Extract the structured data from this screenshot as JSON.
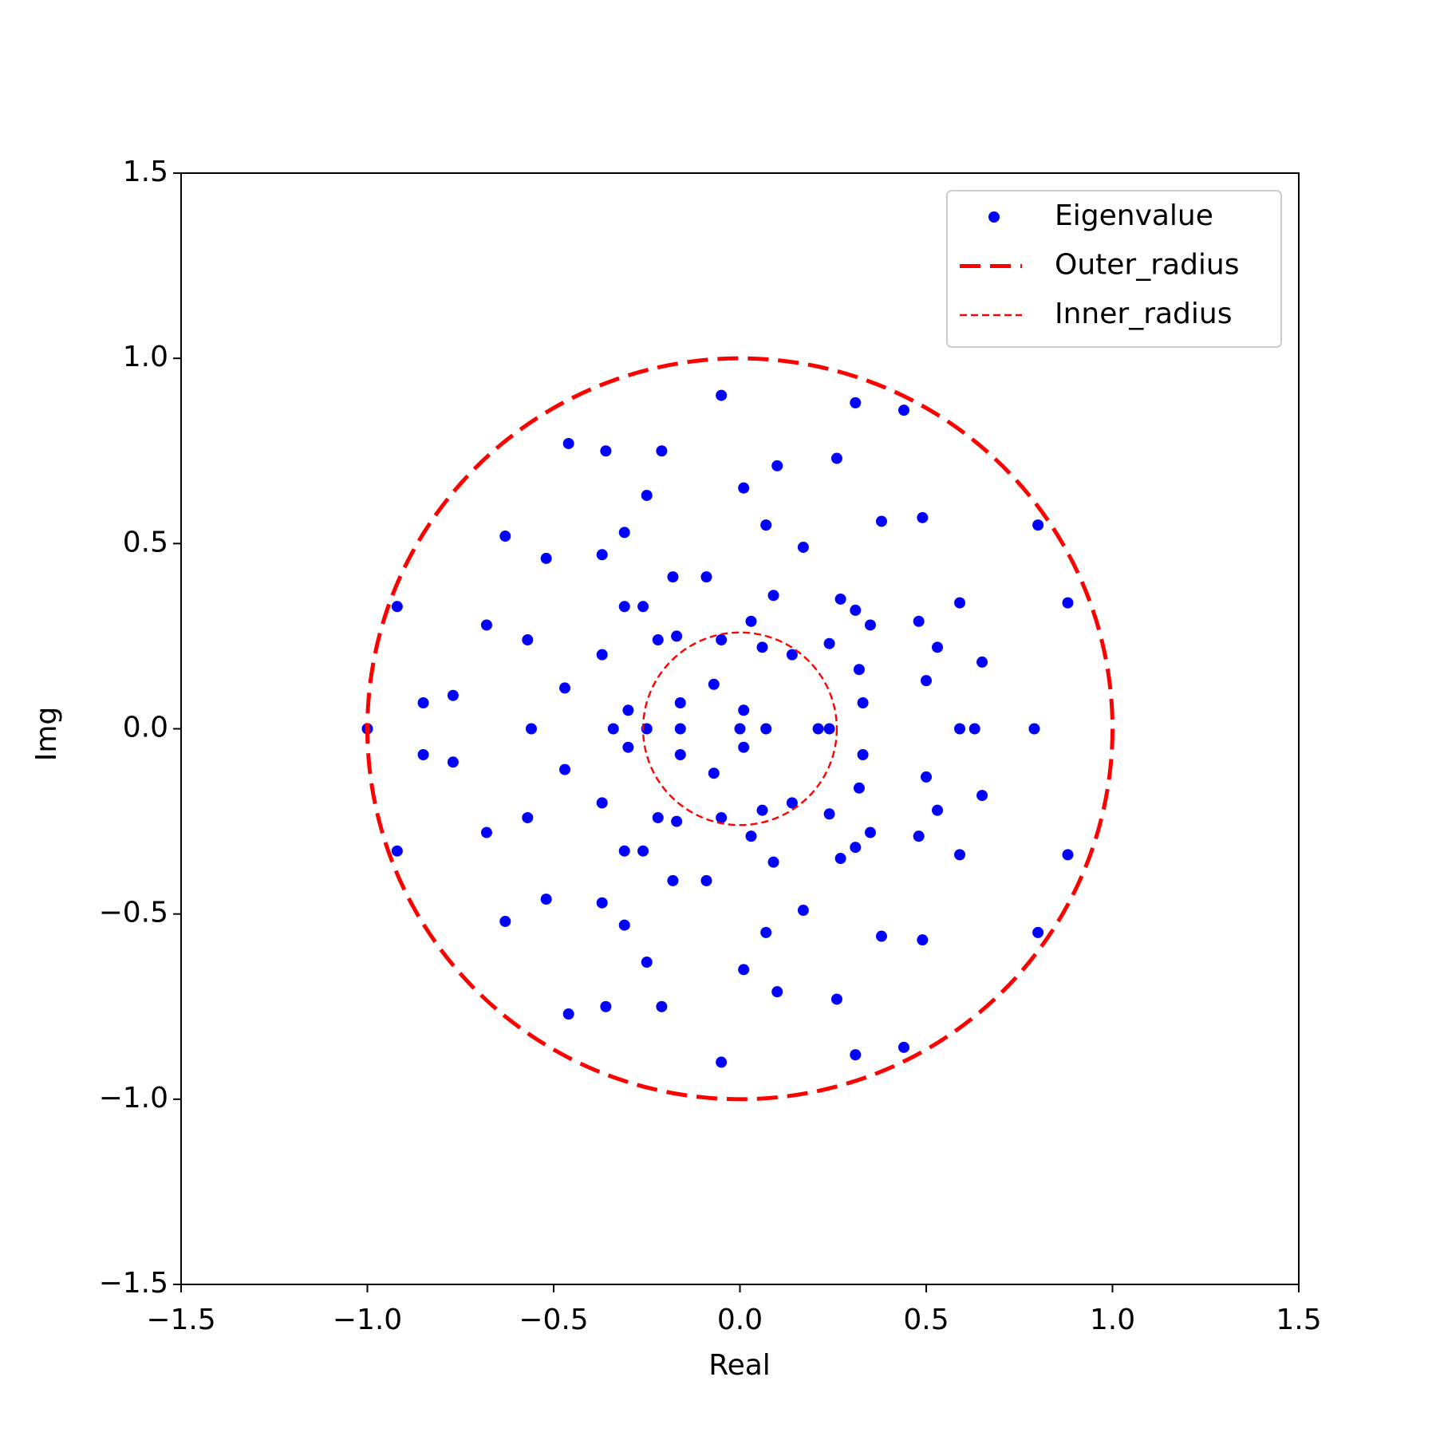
{
  "chart_data": {
    "type": "scatter",
    "x_label": "Real",
    "y_label": "Img",
    "xlim": [
      -1.5,
      1.5
    ],
    "ylim": [
      -1.5,
      1.5
    ],
    "xticks": [
      {
        "value": -1.5,
        "label": "−1.5"
      },
      {
        "value": -1.0,
        "label": "−1.0"
      },
      {
        "value": -0.5,
        "label": "−0.5"
      },
      {
        "value": 0,
        "label": "0.0"
      },
      0.5,
      {
        "value": 1.0,
        "label": "1.0"
      },
      1.5
    ],
    "yticks": [
      {
        "value": -1.5,
        "label": "−1.5"
      },
      {
        "value": -1.0,
        "label": "−1.0"
      },
      {
        "value": -0.5,
        "label": "−0.5"
      },
      {
        "value": 0,
        "label": "0.0"
      },
      0.5,
      {
        "value": 1.0,
        "label": "1.0"
      },
      1.5
    ],
    "legend": "upper right",
    "series": [
      {
        "name": "Eigenvalue",
        "color": "#0000ff",
        "x": [
          -0.05,
          0.31,
          0.44,
          -0.46,
          -0.36,
          -0.21,
          0.26,
          -0.25,
          0.1,
          0.01,
          -0.63,
          -0.31,
          0.07,
          0.38,
          0.49,
          0.8,
          -0.52,
          -0.37,
          0.17,
          -0.18,
          -0.09,
          -0.92,
          0.88,
          -0.31,
          -0.26,
          0.09,
          0.27,
          0.31,
          0.59,
          -0.68,
          0.35,
          0.48,
          0.03,
          -0.57,
          -0.22,
          -0.17,
          -0.05,
          0.06,
          0.24,
          0.53,
          0.14,
          -0.37,
          0.65,
          0.32,
          0.5,
          -0.47,
          -0.07,
          -0.85,
          -0.77,
          -0.16,
          0.33,
          -0.3,
          0.01,
          -1.0,
          -0.56,
          -0.34,
          -0.25,
          -0.16,
          0.0,
          0.07,
          0.21,
          0.24,
          0.59,
          0.63,
          0.79,
          -0.05,
          0.31,
          0.44,
          -0.46,
          -0.36,
          -0.21,
          0.26,
          -0.25,
          0.1,
          0.01,
          -0.63,
          -0.31,
          0.07,
          0.38,
          0.49,
          0.8,
          -0.52,
          -0.37,
          0.17,
          -0.18,
          -0.09,
          -0.92,
          0.88,
          -0.31,
          -0.26,
          0.09,
          0.27,
          0.31,
          0.59,
          -0.68,
          0.35,
          0.48,
          0.03,
          -0.57,
          -0.22,
          -0.17,
          -0.05,
          0.06,
          0.24,
          0.53,
          0.14,
          -0.37,
          0.65,
          0.32,
          0.5,
          -0.47,
          -0.07,
          -0.85,
          -0.77,
          -0.16,
          0.33,
          -0.3,
          0.01
        ],
        "values": [
          0.9,
          0.88,
          0.86,
          0.77,
          0.75,
          0.75,
          0.73,
          0.63,
          0.71,
          0.65,
          0.52,
          0.53,
          0.55,
          0.56,
          0.57,
          0.55,
          0.46,
          0.47,
          0.49,
          0.41,
          0.41,
          0.33,
          0.34,
          0.33,
          0.33,
          0.36,
          0.35,
          0.32,
          0.34,
          0.28,
          0.28,
          0.29,
          0.29,
          0.24,
          0.24,
          0.25,
          0.24,
          0.22,
          0.23,
          0.22,
          0.2,
          0.2,
          0.18,
          0.16,
          0.13,
          0.11,
          0.12,
          0.07,
          0.09,
          0.07,
          0.07,
          0.05,
          0.05,
          0,
          0,
          0,
          0,
          0,
          0,
          0,
          0,
          0,
          0,
          0,
          0,
          -0.9,
          -0.88,
          -0.86,
          -0.77,
          -0.75,
          -0.75,
          -0.73,
          -0.63,
          -0.71,
          -0.65,
          -0.52,
          -0.53,
          -0.55,
          -0.56,
          -0.57,
          -0.55,
          -0.46,
          -0.47,
          -0.49,
          -0.41,
          -0.41,
          -0.33,
          -0.34,
          -0.33,
          -0.33,
          -0.36,
          -0.35,
          -0.32,
          -0.34,
          -0.28,
          -0.28,
          -0.29,
          -0.29,
          -0.24,
          -0.24,
          -0.25,
          -0.24,
          -0.22,
          -0.23,
          -0.22,
          -0.2,
          -0.2,
          -0.18,
          -0.16,
          -0.13,
          -0.11,
          -0.12,
          -0.07,
          -0.09,
          -0.07,
          -0.07,
          -0.05,
          -0.05
        ]
      },
      {
        "name": "Outer_radius",
        "color": "#ff0000",
        "radius": 1
      },
      {
        "name": "Inner_radius",
        "color": "#ff0000",
        "radius": 0.26
      }
    ]
  }
}
